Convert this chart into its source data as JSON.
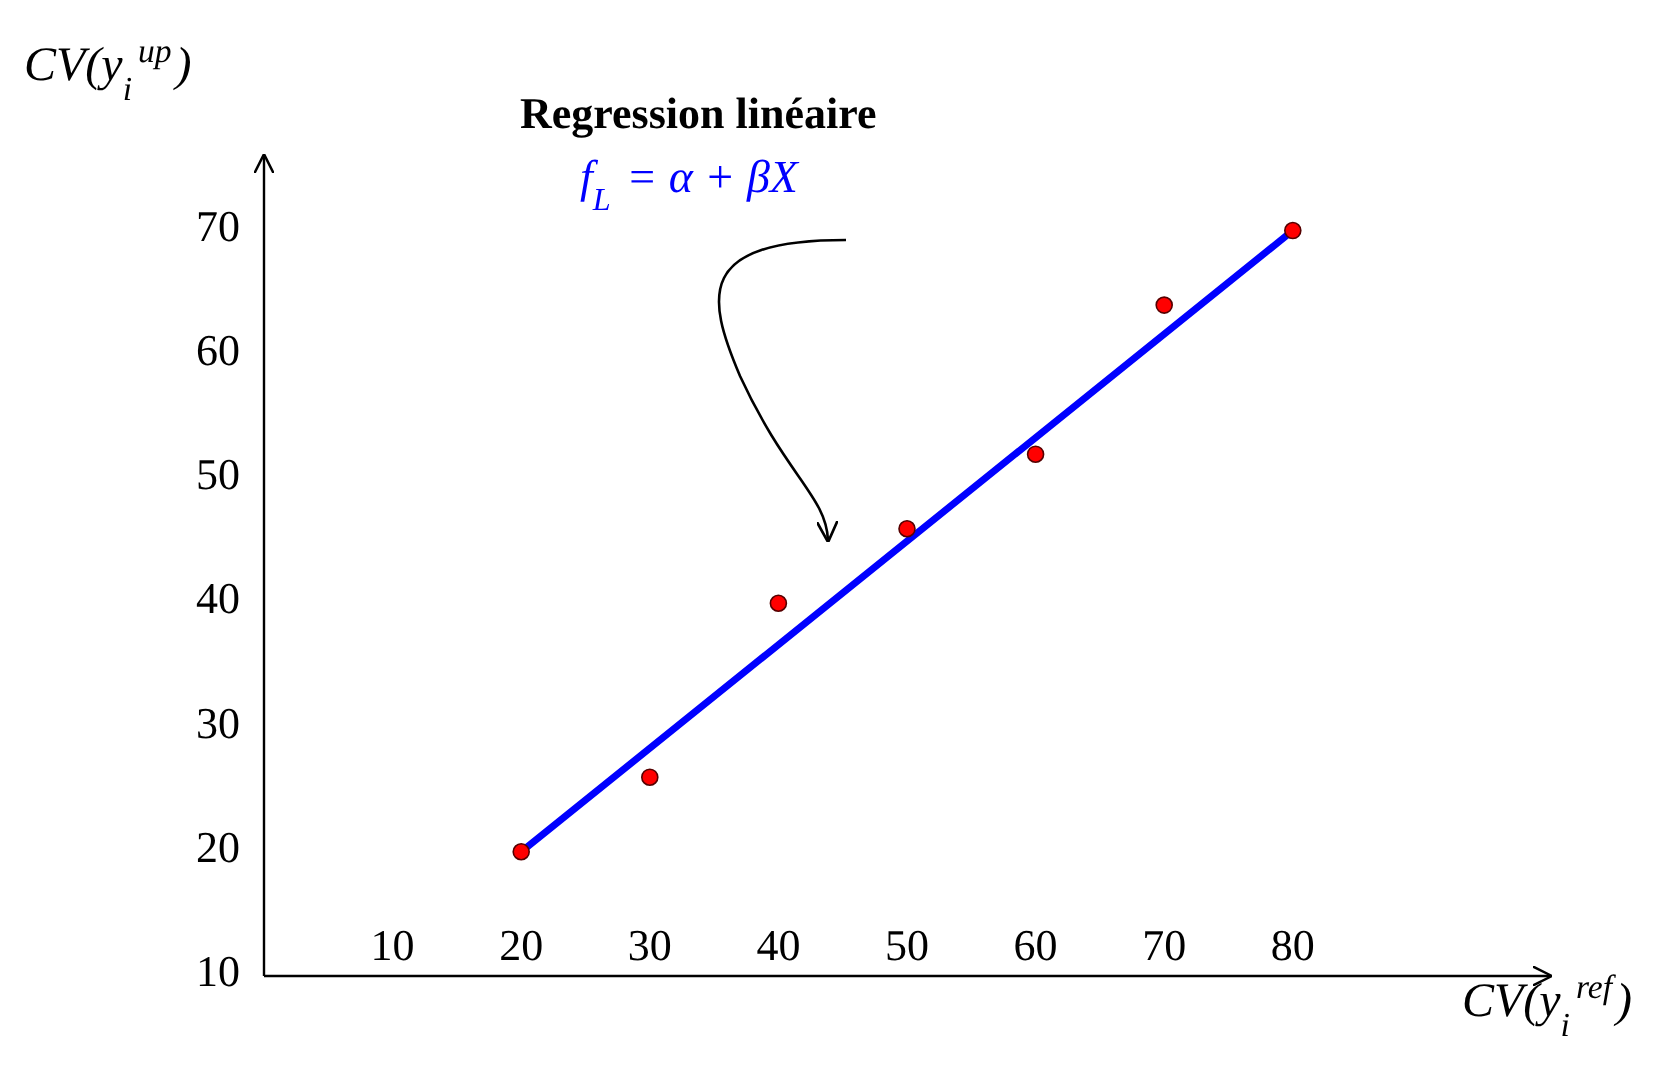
{
  "chart_data": {
    "type": "scatter",
    "xlabel": "CV(y$_{i}$$^{ref}$)",
    "ylabel": "CV(y$_{i}$$^{up}$)",
    "annotations": [
      "Regression linéaire",
      "f$_{L}$ = α + βX"
    ],
    "xlim": [
      0,
      100
    ],
    "ylim": [
      10,
      76
    ],
    "xticks": [
      10,
      20,
      30,
      40,
      50,
      60,
      70,
      80
    ],
    "yticks": [
      10,
      20,
      30,
      40,
      50,
      60,
      70
    ],
    "grid": false,
    "marker": "circle",
    "series": [
      {
        "type": "line",
        "marker": "none",
        "color": "#0000ff",
        "x": [
          20,
          80
        ],
        "values": [
          20,
          70
        ]
      },
      {
        "color": "#ff0000",
        "x": [
          20,
          30,
          40,
          50,
          60,
          70,
          80
        ],
        "values": [
          20,
          26,
          40,
          46,
          52,
          64,
          70
        ]
      }
    ]
  }
}
